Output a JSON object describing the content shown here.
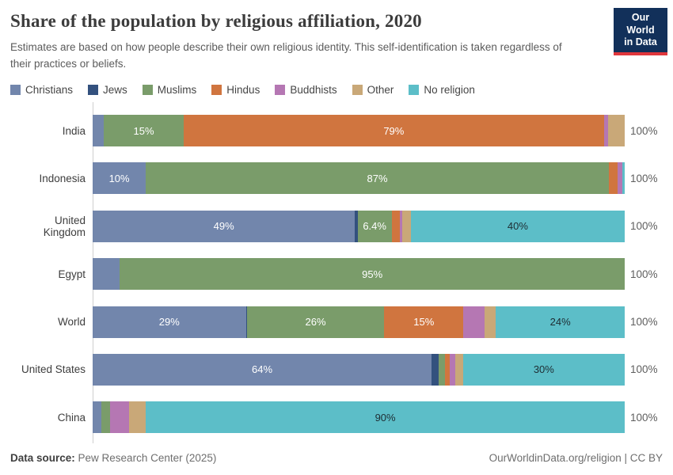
{
  "header": {
    "title": "Share of the population by religious affiliation, 2020",
    "subtitle": "Estimates are based on how people describe their own religious identity. This self-identification is taken regardless of their practices or beliefs.",
    "logo": {
      "line1": "Our World",
      "line2": "in Data",
      "bg_color": "#12305a",
      "accent_color": "#e0373c"
    }
  },
  "legend": [
    {
      "label": "Christians",
      "color": "#7286ac"
    },
    {
      "label": "Jews",
      "color": "#33517e"
    },
    {
      "label": "Muslims",
      "color": "#7a9c6a"
    },
    {
      "label": "Hindus",
      "color": "#d0753f"
    },
    {
      "label": "Buddhists",
      "color": "#b577b3"
    },
    {
      "label": "Other",
      "color": "#c9a878"
    },
    {
      "label": "No religion",
      "color": "#5cbec8"
    }
  ],
  "chart_data": {
    "type": "bar",
    "orientation": "horizontal",
    "stacked": true,
    "unit": "%",
    "xlim": [
      0,
      100
    ],
    "title": "Share of the population by religious affiliation, 2020",
    "categories": [
      "India",
      "Indonesia",
      "United Kingdom",
      "Egypt",
      "World",
      "United States",
      "China"
    ],
    "series_keys": [
      "Christians",
      "Jews",
      "Muslims",
      "Hindus",
      "Buddhists",
      "Other",
      "No religion"
    ],
    "colors": {
      "Christians": "#7286ac",
      "Jews": "#33517e",
      "Muslims": "#7a9c6a",
      "Hindus": "#d0753f",
      "Buddhists": "#b577b3",
      "Other": "#c9a878",
      "No religion": "#5cbec8"
    },
    "rows": [
      {
        "label": "India",
        "total_label": "100%",
        "segments": [
          {
            "name": "Christians",
            "value": 2.1
          },
          {
            "name": "Muslims",
            "value": 15,
            "label": "15%"
          },
          {
            "name": "Hindus",
            "value": 79,
            "label": "79%"
          },
          {
            "name": "Buddhists",
            "value": 0.8
          },
          {
            "name": "Other",
            "value": 3.1
          }
        ]
      },
      {
        "label": "Indonesia",
        "total_label": "100%",
        "segments": [
          {
            "name": "Christians",
            "value": 10,
            "label": "10%"
          },
          {
            "name": "Muslims",
            "value": 87,
            "label": "87%"
          },
          {
            "name": "Hindus",
            "value": 1.6
          },
          {
            "name": "Buddhists",
            "value": 0.9
          },
          {
            "name": "No religion",
            "value": 0.5
          }
        ]
      },
      {
        "label": "United Kingdom",
        "total_label": "100%",
        "segments": [
          {
            "name": "Christians",
            "value": 49.3,
            "label": "49%"
          },
          {
            "name": "Jews",
            "value": 0.5
          },
          {
            "name": "Muslims",
            "value": 6.4,
            "label": "6.4%"
          },
          {
            "name": "Hindus",
            "value": 1.6
          },
          {
            "name": "Buddhists",
            "value": 0.4
          },
          {
            "name": "Other",
            "value": 1.6
          },
          {
            "name": "No religion",
            "value": 40.2,
            "label": "40%",
            "dark_label": true
          }
        ]
      },
      {
        "label": "Egypt",
        "total_label": "100%",
        "segments": [
          {
            "name": "Christians",
            "value": 5.1
          },
          {
            "name": "Muslims",
            "value": 94.9,
            "label": "95%"
          }
        ]
      },
      {
        "label": "World",
        "total_label": "100%",
        "segments": [
          {
            "name": "Christians",
            "value": 28.8,
            "label": "29%"
          },
          {
            "name": "Jews",
            "value": 0.2
          },
          {
            "name": "Muslims",
            "value": 25.8,
            "label": "26%"
          },
          {
            "name": "Hindus",
            "value": 14.9,
            "label": "15%"
          },
          {
            "name": "Buddhists",
            "value": 4.0
          },
          {
            "name": "Other",
            "value": 2.1
          },
          {
            "name": "No religion",
            "value": 24.2,
            "label": "24%",
            "dark_label": true
          }
        ]
      },
      {
        "label": "United States",
        "total_label": "100%",
        "segments": [
          {
            "name": "Christians",
            "value": 63.7,
            "label": "64%"
          },
          {
            "name": "Jews",
            "value": 1.4
          },
          {
            "name": "Muslims",
            "value": 1.1
          },
          {
            "name": "Hindus",
            "value": 0.9
          },
          {
            "name": "Buddhists",
            "value": 1.0
          },
          {
            "name": "Other",
            "value": 1.5
          },
          {
            "name": "No religion",
            "value": 30.4,
            "label": "30%",
            "dark_label": true
          }
        ]
      },
      {
        "label": "China",
        "total_label": "100%",
        "segments": [
          {
            "name": "Christians",
            "value": 1.6
          },
          {
            "name": "Muslims",
            "value": 1.7
          },
          {
            "name": "Buddhists",
            "value": 3.6
          },
          {
            "name": "Other",
            "value": 3.1
          },
          {
            "name": "No religion",
            "value": 90,
            "label": "90%",
            "dark_label": true
          }
        ]
      }
    ]
  },
  "footer": {
    "source_prefix": "Data source:",
    "source_text": " Pew Research Center (2025)",
    "rights_text": "OurWorldinData.org/religion | CC BY"
  }
}
